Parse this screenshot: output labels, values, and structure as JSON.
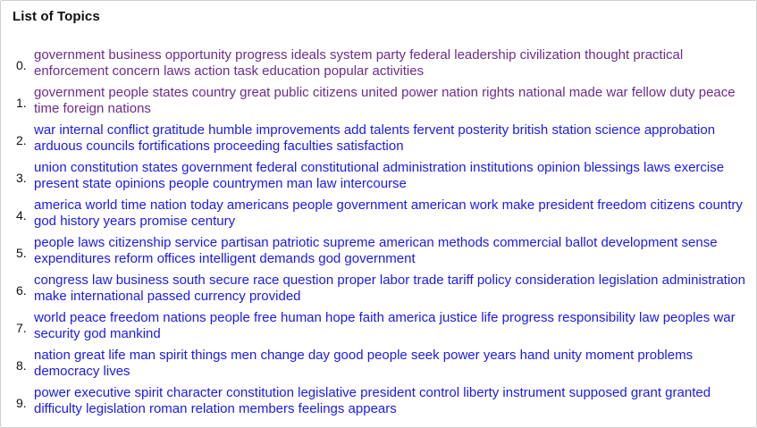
{
  "header": {
    "title": "List of Topics"
  },
  "colors": {
    "visited_link": "#6b2c8f",
    "unvisited_link": "#1a1aee"
  },
  "topics": [
    {
      "num": "0.",
      "words": "government business opportunity progress ideals system party federal leadership civilization thought practical enforcement concern laws action task education popular activities",
      "visited": true
    },
    {
      "num": "1.",
      "words": "government people states country great public citizens united power nation rights national made war fellow duty peace time foreign nations",
      "visited": true
    },
    {
      "num": "2.",
      "words": "war internal conflict gratitude humble improvements add talents fervent posterity british station science approbation arduous councils fortifications proceeding faculties satisfaction",
      "visited": false
    },
    {
      "num": "3.",
      "words": "union constitution states government federal constitutional administration institutions opinion blessings laws exercise present state opinions people countrymen man law intercourse",
      "visited": false
    },
    {
      "num": "4.",
      "words": "america world time nation today americans people government american work make president freedom citizens country god history years promise century",
      "visited": false
    },
    {
      "num": "5.",
      "words": "people laws citizenship service partisan patriotic supreme american methods commercial ballot development sense expenditures reform offices intelligent demands god government",
      "visited": false
    },
    {
      "num": "6.",
      "words": "congress law business south secure race question proper labor trade tariff policy consideration legislation administration make international passed currency provided",
      "visited": false
    },
    {
      "num": "7.",
      "words": "world peace freedom nations people free human hope faith america justice life progress responsibility law peoples war security god mankind",
      "visited": false
    },
    {
      "num": "8.",
      "words": "nation great life man spirit things men change day good people seek power years hand unity moment problems democracy lives",
      "visited": false
    },
    {
      "num": "9.",
      "words": "power executive spirit character constitution legislative president control liberty instrument supposed grant granted difficulty legislation roman relation members feelings appears",
      "visited": false
    }
  ]
}
